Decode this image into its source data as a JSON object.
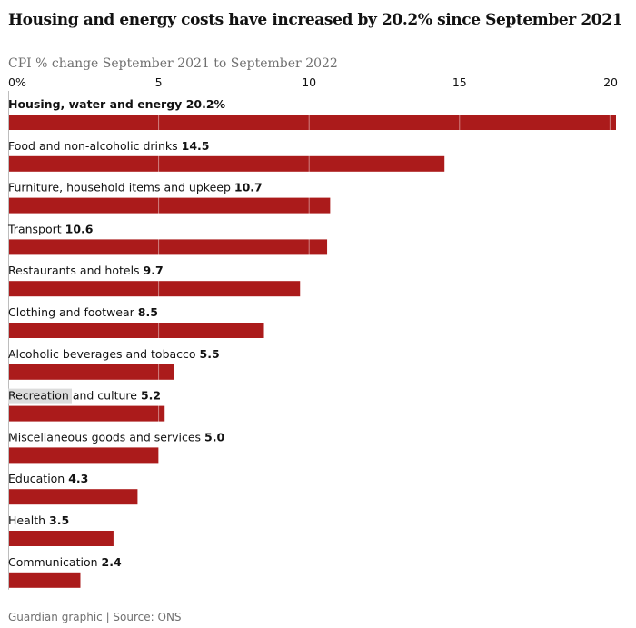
{
  "chart_data": {
    "type": "bar",
    "orientation": "horizontal",
    "title": "Housing and energy costs have increased by 20.2% since September 2021",
    "subtitle": "CPI % change September 2021 to September 2022",
    "xlim": [
      0,
      20.2
    ],
    "ticks": [
      {
        "value": 0,
        "label": "0%"
      },
      {
        "value": 5,
        "label": "5"
      },
      {
        "value": 10,
        "label": "10"
      },
      {
        "value": 15,
        "label": "15"
      },
      {
        "value": 20,
        "label": "20"
      }
    ],
    "grid": true,
    "bar_color": "#ab1b1b",
    "categories": [
      "Housing, water and energy",
      "Food and non-alcoholic drinks",
      "Furniture, household items and upkeep",
      "Transport",
      "Restaurants and hotels",
      "Clothing and footwear",
      "Alcoholic beverages and tobacco",
      "Recreation and culture",
      "Miscellaneous goods and services",
      "Education",
      "Health",
      "Communication"
    ],
    "value_labels": [
      "20.2%",
      "14.5",
      "10.7",
      "10.6",
      "9.7",
      "8.5",
      "5.5",
      "5.2",
      "5.0",
      "4.3",
      "3.5",
      "2.4"
    ],
    "values": [
      20.2,
      14.5,
      10.7,
      10.6,
      9.7,
      8.5,
      5.5,
      5.2,
      5.0,
      4.3,
      3.5,
      2.4
    ]
  },
  "source": "Guardian graphic | Source: ONS"
}
